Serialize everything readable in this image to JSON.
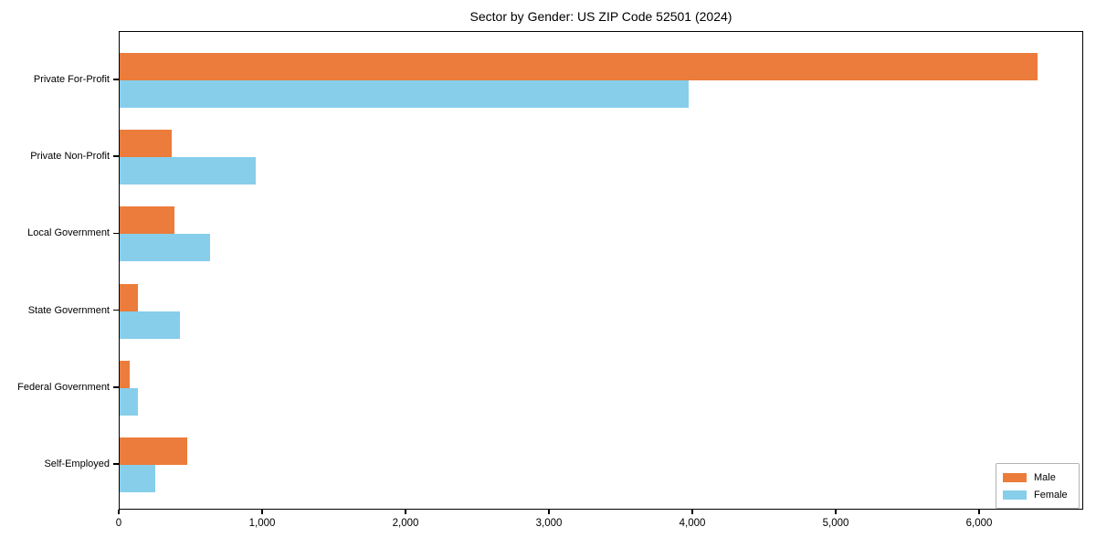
{
  "chart_data": {
    "type": "bar",
    "orientation": "horizontal",
    "title": "Sector by Gender: US ZIP Code 52501 (2024)",
    "categories": [
      "Private For-Profit",
      "Private Non-Profit",
      "Local Government",
      "State Government",
      "Federal Government",
      "Self-Employed"
    ],
    "series": [
      {
        "name": "Male",
        "color": "#EC7C3B",
        "values": [
          6400,
          360,
          380,
          130,
          70,
          470
        ]
      },
      {
        "name": "Female",
        "color": "#87CEEB",
        "values": [
          3970,
          950,
          630,
          420,
          130,
          250
        ]
      }
    ],
    "xlabel": "",
    "ylabel": "",
    "xlim": [
      0,
      6726
    ],
    "xticks": [
      0,
      1000,
      2000,
      3000,
      4000,
      5000,
      6000
    ],
    "xtick_labels": [
      "0",
      "1,000",
      "2,000",
      "3,000",
      "4,000",
      "5,000",
      "6,000"
    ],
    "grid": false,
    "legend": {
      "position": "lower right",
      "entries": [
        "Male",
        "Female"
      ]
    }
  }
}
